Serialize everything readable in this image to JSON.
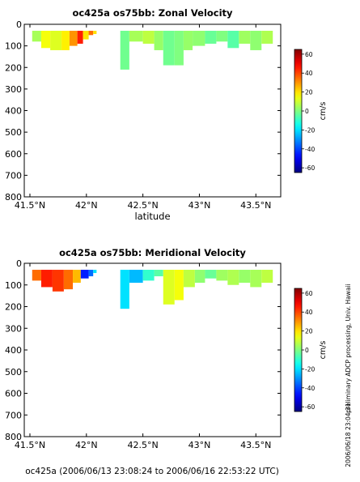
{
  "chart_data": [
    {
      "type": "heatmap",
      "title": "oc425a os75bb: Zonal Velocity",
      "xlabel": "latitude",
      "ylabel": "",
      "xlim": [
        41.45,
        43.72
      ],
      "ylim": [
        800,
        0
      ],
      "xticks": [
        41.5,
        42,
        42.5,
        43,
        43.5
      ],
      "xtick_labels": [
        "41.5°N",
        "42°N",
        "42.5°N",
        "43°N",
        "43.5°N"
      ],
      "yticks": [
        0,
        100,
        200,
        300,
        400,
        500,
        600,
        700,
        800
      ],
      "colorbar": {
        "label": "cm/s",
        "min": -65,
        "max": 65,
        "ticks": [
          60,
          40,
          20,
          0,
          -20,
          -40,
          -60
        ]
      },
      "cells": [
        {
          "lat": [
            41.52,
            41.6
          ],
          "depth": [
            30,
            80
          ],
          "value": 5
        },
        {
          "lat": [
            41.6,
            41.68
          ],
          "depth": [
            30,
            110
          ],
          "value": 15
        },
        {
          "lat": [
            41.68,
            41.78
          ],
          "depth": [
            30,
            120
          ],
          "value": 12
        },
        {
          "lat": [
            41.78,
            41.85
          ],
          "depth": [
            30,
            120
          ],
          "value": 18
        },
        {
          "lat": [
            41.85,
            41.92
          ],
          "depth": [
            30,
            100
          ],
          "value": 30
        },
        {
          "lat": [
            41.92,
            41.97
          ],
          "depth": [
            30,
            90
          ],
          "value": 45
        },
        {
          "lat": [
            41.97,
            42.02
          ],
          "depth": [
            30,
            70
          ],
          "value": 20
        },
        {
          "lat": [
            42.02,
            42.06
          ],
          "depth": [
            30,
            50
          ],
          "value": 35
        },
        {
          "lat": [
            42.06,
            42.09
          ],
          "depth": [
            30,
            45
          ],
          "value": 20
        },
        {
          "lat": [
            42.3,
            42.38
          ],
          "depth": [
            30,
            210
          ],
          "value": -2
        },
        {
          "lat": [
            42.38,
            42.5
          ],
          "depth": [
            30,
            80
          ],
          "value": 5
        },
        {
          "lat": [
            42.5,
            42.6
          ],
          "depth": [
            30,
            90
          ],
          "value": 8
        },
        {
          "lat": [
            42.6,
            42.68
          ],
          "depth": [
            30,
            120
          ],
          "value": 3
        },
        {
          "lat": [
            42.68,
            42.78
          ],
          "depth": [
            30,
            190
          ],
          "value": -2
        },
        {
          "lat": [
            42.78,
            42.86
          ],
          "depth": [
            30,
            190
          ],
          "value": 0
        },
        {
          "lat": [
            42.86,
            42.94
          ],
          "depth": [
            30,
            120
          ],
          "value": 3
        },
        {
          "lat": [
            42.94,
            43.05
          ],
          "depth": [
            30,
            100
          ],
          "value": 2
        },
        {
          "lat": [
            43.05,
            43.15
          ],
          "depth": [
            30,
            90
          ],
          "value": -3
        },
        {
          "lat": [
            43.15,
            43.25
          ],
          "depth": [
            30,
            80
          ],
          "value": 0
        },
        {
          "lat": [
            43.25,
            43.35
          ],
          "depth": [
            30,
            110
          ],
          "value": -5
        },
        {
          "lat": [
            43.35,
            43.45
          ],
          "depth": [
            30,
            90
          ],
          "value": 4
        },
        {
          "lat": [
            43.45,
            43.55
          ],
          "depth": [
            30,
            120
          ],
          "value": 2
        },
        {
          "lat": [
            43.55,
            43.65
          ],
          "depth": [
            30,
            90
          ],
          "value": 6
        }
      ]
    },
    {
      "type": "heatmap",
      "title": "oc425a os75bb: Meridional Velocity",
      "xlabel": "",
      "ylabel": "",
      "xlim": [
        41.45,
        43.72
      ],
      "ylim": [
        800,
        0
      ],
      "xticks": [
        41.5,
        42,
        42.5,
        43,
        43.5
      ],
      "xtick_labels": [
        "41.5°N",
        "42°N",
        "42.5°N",
        "43°N",
        "43.5°N"
      ],
      "yticks": [
        0,
        100,
        200,
        300,
        400,
        500,
        600,
        700,
        800
      ],
      "colorbar": {
        "label": "cm/s",
        "min": -65,
        "max": 65,
        "ticks": [
          60,
          40,
          20,
          0,
          -20,
          -40,
          -60
        ]
      },
      "cells": [
        {
          "lat": [
            41.52,
            41.6
          ],
          "depth": [
            30,
            80
          ],
          "value": 35
        },
        {
          "lat": [
            41.6,
            41.7
          ],
          "depth": [
            30,
            110
          ],
          "value": 45
        },
        {
          "lat": [
            41.7,
            41.8
          ],
          "depth": [
            30,
            130
          ],
          "value": 42
        },
        {
          "lat": [
            41.8,
            41.88
          ],
          "depth": [
            30,
            120
          ],
          "value": 35
        },
        {
          "lat": [
            41.88,
            41.95
          ],
          "depth": [
            30,
            90
          ],
          "value": 25
        },
        {
          "lat": [
            41.95,
            42.02
          ],
          "depth": [
            30,
            70
          ],
          "value": -45
        },
        {
          "lat": [
            42.02,
            42.06
          ],
          "depth": [
            30,
            60
          ],
          "value": -35
        },
        {
          "lat": [
            42.06,
            42.09
          ],
          "depth": [
            30,
            45
          ],
          "value": -20
        },
        {
          "lat": [
            42.3,
            42.38
          ],
          "depth": [
            30,
            210
          ],
          "value": -20
        },
        {
          "lat": [
            42.38,
            42.5
          ],
          "depth": [
            30,
            90
          ],
          "value": -25
        },
        {
          "lat": [
            42.5,
            42.6
          ],
          "depth": [
            30,
            80
          ],
          "value": -10
        },
        {
          "lat": [
            42.6,
            42.68
          ],
          "depth": [
            30,
            60
          ],
          "value": -5
        },
        {
          "lat": [
            42.68,
            42.78
          ],
          "depth": [
            30,
            190
          ],
          "value": 12
        },
        {
          "lat": [
            42.78,
            42.86
          ],
          "depth": [
            30,
            170
          ],
          "value": 15
        },
        {
          "lat": [
            42.86,
            42.96
          ],
          "depth": [
            30,
            110
          ],
          "value": 8
        },
        {
          "lat": [
            42.96,
            43.05
          ],
          "depth": [
            30,
            90
          ],
          "value": 2
        },
        {
          "lat": [
            43.05,
            43.15
          ],
          "depth": [
            30,
            70
          ],
          "value": -3
        },
        {
          "lat": [
            43.15,
            43.25
          ],
          "depth": [
            30,
            80
          ],
          "value": 4
        },
        {
          "lat": [
            43.25,
            43.35
          ],
          "depth": [
            30,
            100
          ],
          "value": 6
        },
        {
          "lat": [
            43.35,
            43.45
          ],
          "depth": [
            30,
            90
          ],
          "value": 3
        },
        {
          "lat": [
            43.45,
            43.55
          ],
          "depth": [
            30,
            110
          ],
          "value": 5
        },
        {
          "lat": [
            43.55,
            43.65
          ],
          "depth": [
            30,
            90
          ],
          "value": 8
        }
      ]
    }
  ],
  "footer": "oc425a (2006/06/13 23:08:24 to 2006/06/16 22:53:22 UTC)",
  "side_note": "preliminary ADCP processing,   Univ. Hawaii",
  "side_stamp": "2006/06/18 23:04:31"
}
